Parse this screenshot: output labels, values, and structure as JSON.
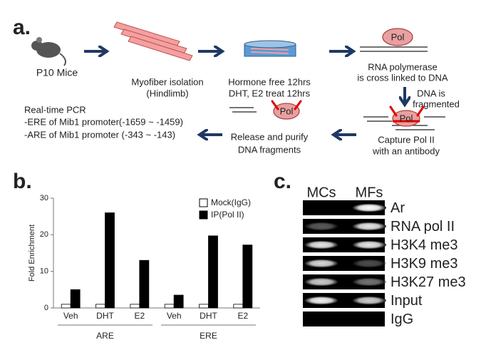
{
  "panel_a": {
    "label": "a.",
    "mice": "P10 Mice",
    "myofiber": [
      "Myofiber isolation",
      "(Hindlimb)"
    ],
    "hormone": [
      "Hormone free 12hrs",
      "DHT, E2 treat 12hrs"
    ],
    "pol": "Pol",
    "crosslink": [
      "RNA polymerase",
      "is cross linked to DNA"
    ],
    "fragment": [
      "DNA is",
      "fragmented"
    ],
    "capture": [
      "Capture Pol II",
      "with an antibody"
    ],
    "release": [
      "Release and purify",
      "DNA fragments"
    ],
    "pcr": [
      "Real-time PCR",
      "-ERE of Mib1 promoter(-1659 ~ -1459)",
      "-ARE of Mib1 promoter (-343 ~ -143)"
    ]
  },
  "chart_data": {
    "type": "bar",
    "panel_label": "b.",
    "y_label": "Fold Enrichment",
    "categories": [
      "Veh",
      "DHT",
      "E2",
      "Veh",
      "DHT",
      "E2"
    ],
    "groups": [
      "ARE",
      "ERE"
    ],
    "series": [
      {
        "name": "Mock(IgG)",
        "color": "#ffffff",
        "values": [
          1,
          1,
          1,
          1,
          1,
          1
        ]
      },
      {
        "name": "IP(Pol II)",
        "color": "#000000",
        "values": [
          5,
          26,
          13,
          3.5,
          19.7,
          17.2
        ]
      }
    ],
    "ylim": [
      0,
      30
    ],
    "yticks": [
      0,
      10,
      20,
      30
    ]
  },
  "panel_c": {
    "label": "c.",
    "lanes": [
      "MCs",
      "MFs"
    ],
    "rows": [
      "Ar",
      "RNA pol II",
      "H3K4 me3",
      "H3K9 me3",
      "H3K27 me3",
      "Input",
      "IgG"
    ]
  }
}
